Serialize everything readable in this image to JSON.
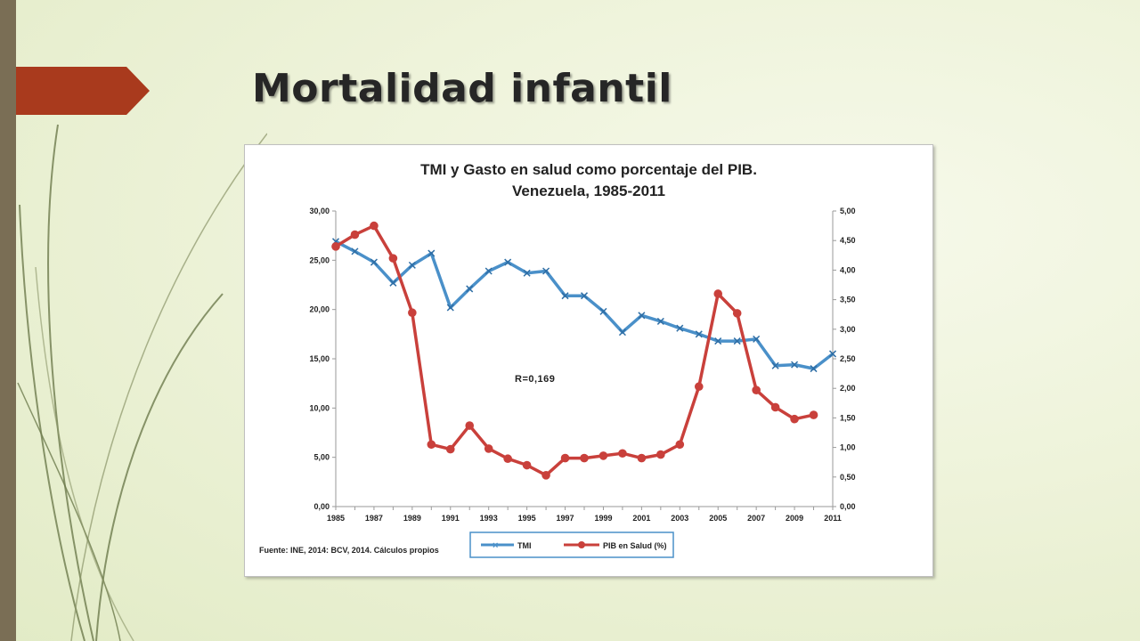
{
  "slide": {
    "title": "Mortalidad infantil"
  },
  "colors": {
    "accent": "#a93a1d",
    "sidebar": "#7a6e55",
    "tmi": "#4a90c9",
    "pib": "#c9403b"
  },
  "chart_data": {
    "type": "line",
    "title_line1": "TMI y Gasto en salud como porcentaje del PIB.",
    "title_line2": "Venezuela, 1985-2011",
    "x": [
      1985,
      1986,
      1987,
      1988,
      1989,
      1990,
      1991,
      1992,
      1993,
      1994,
      1995,
      1996,
      1997,
      1998,
      1999,
      2000,
      2001,
      2002,
      2003,
      2004,
      2005,
      2006,
      2007,
      2008,
      2009,
      2010,
      2011
    ],
    "x_tick_labels": [
      "1985",
      "1987",
      "1989",
      "1991",
      "1993",
      "1995",
      "1997",
      "1999",
      "2001",
      "2003",
      "2005",
      "2007",
      "2009",
      "2011"
    ],
    "y_left_tick_labels": [
      "0,00",
      "5,00",
      "10,00",
      "15,00",
      "20,00",
      "25,00",
      "30,00"
    ],
    "y_right_tick_labels": [
      "0,00",
      "0,50",
      "1,00",
      "1,50",
      "2,00",
      "2,50",
      "3,00",
      "3,50",
      "4,00",
      "4,50",
      "5,00"
    ],
    "y_left_lim": [
      0,
      30
    ],
    "y_right_lim": [
      0,
      5
    ],
    "series": [
      {
        "name": "TMI",
        "axis": "left",
        "marker": "x",
        "values": [
          26.9,
          25.9,
          24.8,
          22.7,
          24.5,
          25.7,
          20.2,
          22.1,
          23.9,
          24.8,
          23.7,
          23.9,
          21.4,
          21.4,
          19.8,
          17.7,
          19.4,
          18.8,
          18.1,
          17.5,
          16.8,
          16.8,
          17.0,
          14.3,
          14.4,
          14.0,
          15.5
        ]
      },
      {
        "name": "PIB en Salud (%)",
        "axis": "right",
        "marker": "circle",
        "values": [
          4.4,
          4.6,
          4.75,
          4.2,
          3.28,
          1.05,
          0.97,
          1.37,
          0.98,
          0.81,
          0.7,
          0.53,
          0.82,
          0.82,
          0.86,
          0.9,
          0.82,
          0.88,
          1.05,
          2.03,
          3.6,
          3.27,
          1.97,
          1.68,
          1.48,
          1.55,
          null
        ]
      }
    ],
    "annotation": "R=0,169",
    "source_note": "Fuente: INE, 2014: BCV, 2014. Cálculos propios",
    "legend_position": "bottom",
    "grid": false
  }
}
